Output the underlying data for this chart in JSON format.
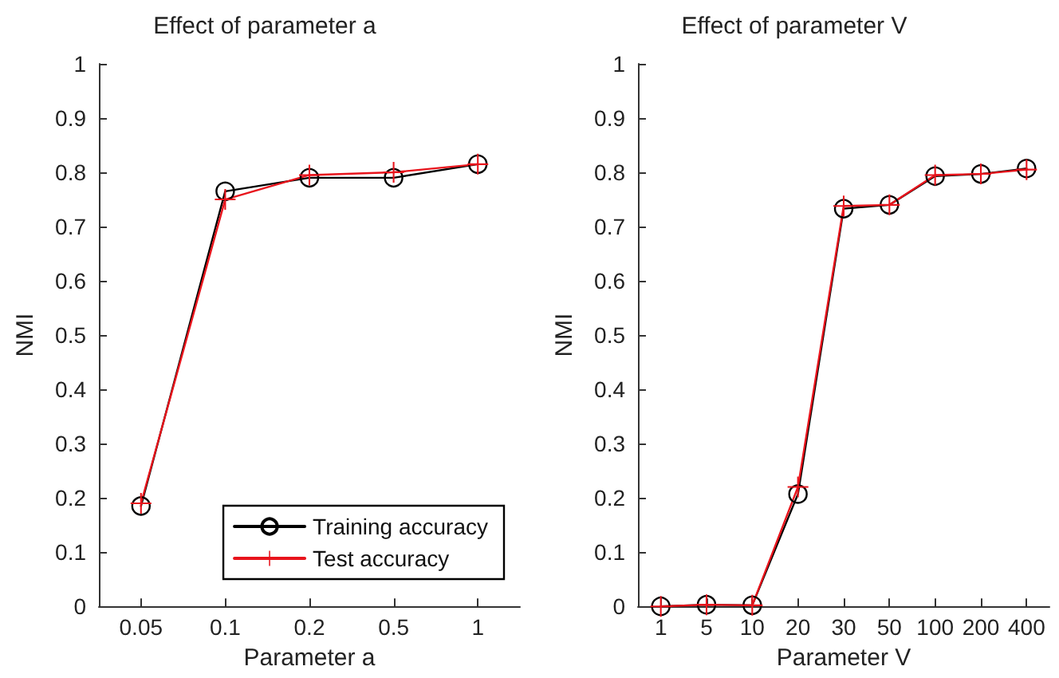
{
  "chart_data": [
    {
      "type": "line",
      "title": "Effect of parameter a",
      "xlabel": "Parameter a",
      "ylabel": "NMI",
      "categories": [
        "0.05",
        "0.1",
        "0.2",
        "0.5",
        "1"
      ],
      "ylim": [
        0,
        1
      ],
      "yticks": [
        0,
        0.1,
        0.2,
        0.3,
        0.4,
        0.5,
        0.6,
        0.7,
        0.8,
        0.9,
        1
      ],
      "grid": false,
      "legend": "bottom right",
      "series": [
        {
          "name": "Training accuracy",
          "color": "#000000",
          "marker": "circle",
          "values": [
            0.185,
            0.765,
            0.79,
            0.79,
            0.815
          ]
        },
        {
          "name": "Test accuracy",
          "color": "#e8141c",
          "marker": "cross",
          "values": [
            0.19,
            0.75,
            0.795,
            0.8,
            0.815
          ]
        }
      ]
    },
    {
      "type": "line",
      "title": "Effect of parameter V",
      "xlabel": "Parameter V",
      "ylabel": "NMI",
      "categories": [
        "1",
        "5",
        "10",
        "20",
        "30",
        "50",
        "100",
        "200",
        "400"
      ],
      "ylim": [
        0,
        1
      ],
      "yticks": [
        0,
        0.1,
        0.2,
        0.3,
        0.4,
        0.5,
        0.6,
        0.7,
        0.8,
        0.9,
        1
      ],
      "grid": false,
      "legend": false,
      "series": [
        {
          "color": "#000000",
          "marker": "circle",
          "values": [
            0,
            0.003,
            0.002,
            0.207,
            0.733,
            0.74,
            0.793,
            0.797,
            0.807
          ]
        },
        {
          "color": "#e8141c",
          "marker": "cross",
          "values": [
            0,
            0.003,
            0.002,
            0.22,
            0.738,
            0.74,
            0.795,
            0.797,
            0.805
          ]
        }
      ]
    }
  ]
}
